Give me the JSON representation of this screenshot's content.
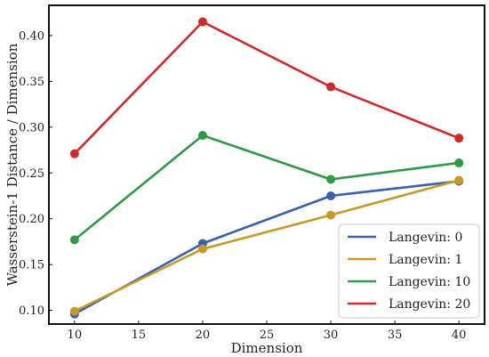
{
  "chart_data": {
    "type": "line",
    "title": "",
    "xlabel": "Dimension",
    "ylabel": "Wasserstein-1 Distance / Dimension",
    "x": [
      10,
      20,
      30,
      40
    ],
    "xlim": [
      8,
      42
    ],
    "ylim": [
      0.085,
      0.433
    ],
    "xticks": [
      10,
      15,
      20,
      25,
      30,
      35,
      40
    ],
    "xtick_labels": [
      "10",
      "15",
      "20",
      "25",
      "30",
      "35",
      "40"
    ],
    "yticks": [
      0.1,
      0.15,
      0.2,
      0.25,
      0.3,
      0.35,
      0.4
    ],
    "ytick_labels": [
      "0.10",
      "0.15",
      "0.20",
      "0.25",
      "0.30",
      "0.35",
      "0.40"
    ],
    "grid": false,
    "legend_position": "bottom-right",
    "series": [
      {
        "name": "Langevin: 0",
        "color": "#3a5fad",
        "values": [
          0.096,
          0.173,
          0.225,
          0.241
        ]
      },
      {
        "name": "Langevin: 1",
        "color": "#c79a28",
        "values": [
          0.099,
          0.167,
          0.204,
          0.242
        ]
      },
      {
        "name": "Langevin: 10",
        "color": "#2e9a45",
        "values": [
          0.177,
          0.291,
          0.243,
          0.261
        ]
      },
      {
        "name": "Langevin: 20",
        "color": "#d12a2a",
        "values": [
          0.271,
          0.415,
          0.344,
          0.288
        ]
      }
    ]
  }
}
